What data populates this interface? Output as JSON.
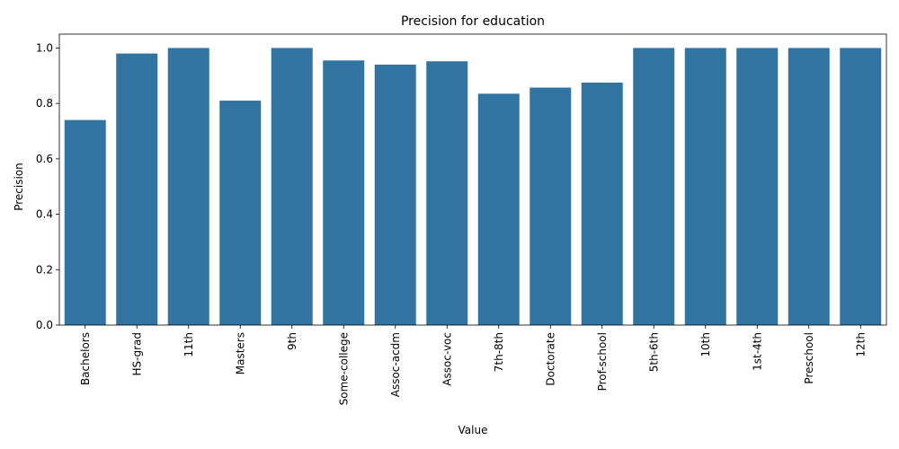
{
  "chart_data": {
    "type": "bar",
    "title": "Precision for education",
    "xlabel": "Value",
    "ylabel": "Precision",
    "categories": [
      "Bachelors",
      "HS-grad",
      "11th",
      "Masters",
      "9th",
      "Some-college",
      "Assoc-acdm",
      "Assoc-voc",
      "7th-8th",
      "Doctorate",
      "Prof-school",
      "5th-6th",
      "10th",
      "1st-4th",
      "Preschool",
      "12th"
    ],
    "values": [
      0.74,
      0.98,
      1.0,
      0.81,
      1.0,
      0.955,
      0.94,
      0.952,
      0.835,
      0.857,
      0.875,
      1.0,
      1.0,
      1.0,
      1.0,
      1.0
    ],
    "ylim": [
      0,
      1.05
    ],
    "yticks": [
      0.0,
      0.2,
      0.4,
      0.6,
      0.8,
      1.0
    ],
    "ytick_labels": [
      "0.0",
      "0.2",
      "0.4",
      "0.6",
      "0.8",
      "1.0"
    ],
    "grid": false,
    "bar_color": "#3274a1"
  }
}
